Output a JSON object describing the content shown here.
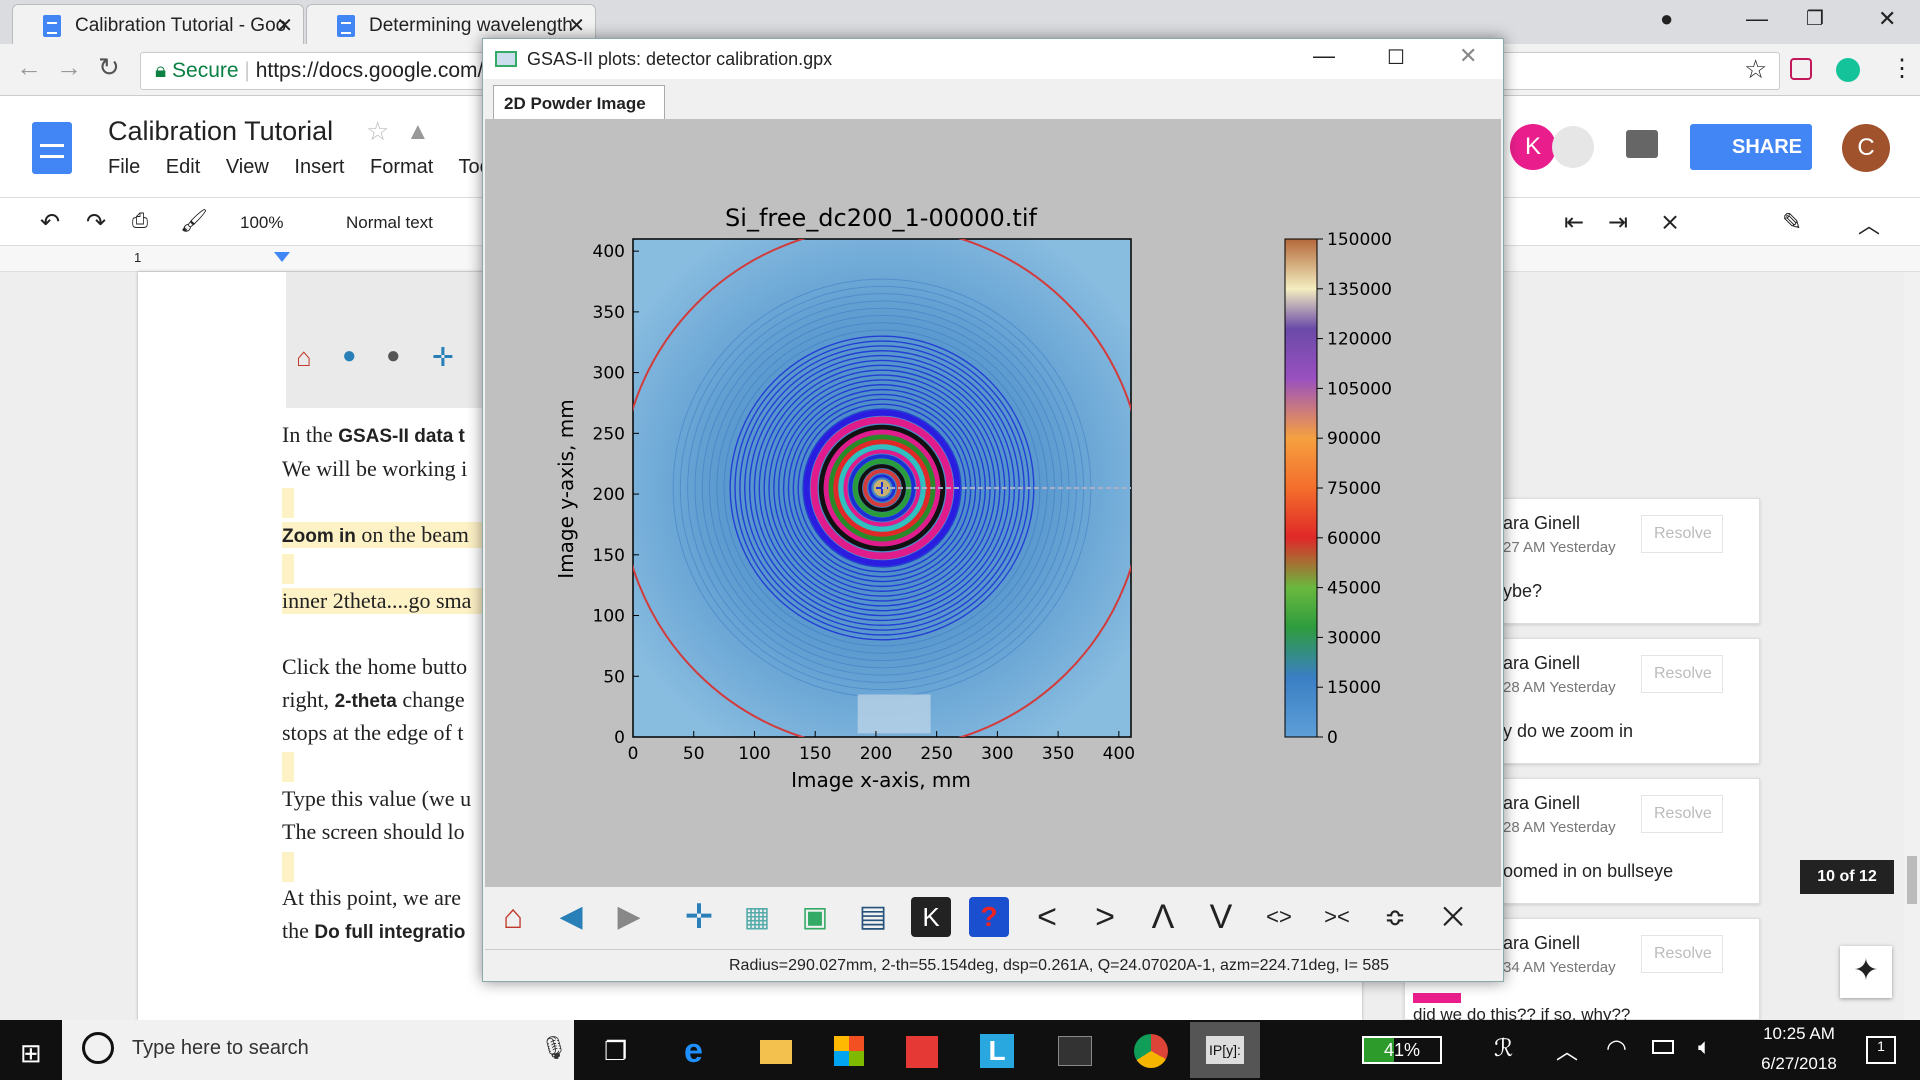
{
  "browser": {
    "tabs": [
      {
        "label": "Calibration Tutorial - Goo"
      },
      {
        "label": "Determining wavelength"
      }
    ],
    "secure_label": "Secure",
    "url": "https://docs.google.com/"
  },
  "docs": {
    "title": "Calibration Tutorial",
    "menus": [
      "File",
      "Edit",
      "View",
      "Insert",
      "Format",
      "Tool"
    ],
    "zoom": "100%",
    "style": "Normal text",
    "share_label": "SHARE",
    "avatar_k": "K",
    "avatar_c": "C",
    "ruler_mark": "1"
  },
  "doc_lines": [
    {
      "pre": "",
      "b": "GSAS-II data t",
      "prefix": "In the ",
      "post": ""
    },
    {
      "prefix": "We will be working i",
      "b": "",
      "post": ""
    },
    {
      "prefix": "",
      "b": "Zoom in",
      "post": " on the beam"
    },
    {
      "prefix": "inner 2theta....go sma",
      "b": "",
      "post": ""
    },
    {
      "prefix": "Click the home butto",
      "b": "",
      "post": ""
    },
    {
      "prefix": "right, ",
      "b": "2-theta",
      "post": " change"
    },
    {
      "prefix": "stops at the edge of t",
      "b": "",
      "post": ""
    },
    {
      "prefix": "Type this value (we u",
      "b": "",
      "post": ""
    },
    {
      "prefix": "The screen should lo",
      "b": "",
      "post": ""
    },
    {
      "prefix": "At this point, we are",
      "b": "",
      "post": ""
    },
    {
      "prefix": "the ",
      "b": "Do full integratio",
      "post": ""
    }
  ],
  "embedded_axis": {
    "tick0": "0",
    "tick50": "50",
    "label_r": "R"
  },
  "comments": [
    {
      "name": "ara Ginell",
      "time": "27 AM Yesterday",
      "text": "ybe?",
      "resolve": "Resolve"
    },
    {
      "name": "ara Ginell",
      "time": "28 AM Yesterday",
      "text": "y do we zoom in",
      "resolve": "Resolve"
    },
    {
      "name": "ara Ginell",
      "time": "28 AM Yesterday",
      "text": "oomed in on bullseye",
      "resolve": "Resolve"
    },
    {
      "name": "ara Ginell",
      "time": "34 AM Yesterday",
      "text": "did we do this?? if so, why??",
      "resolve": "Resolve"
    }
  ],
  "comment_counter": "10 of 12",
  "gsas": {
    "window_title": "GSAS-II plots: detector calibration.gpx",
    "tab": "2D Powder Image",
    "status": "Radius=290.027mm, 2-th=55.154deg, dsp=0.261A, Q=24.07020A-1, azm=224.71deg, I=   585"
  },
  "chart_data": {
    "type": "heatmap",
    "title": "Si_free_dc200_1-00000.tif",
    "xlabel": "Image x-axis, mm",
    "ylabel": "Image y-axis, mm",
    "xlim": [
      0,
      410
    ],
    "ylim": [
      0,
      410
    ],
    "xticks": [
      0,
      50,
      100,
      150,
      200,
      250,
      300,
      350,
      400
    ],
    "yticks": [
      0,
      50,
      100,
      150,
      200,
      250,
      300,
      350,
      400
    ],
    "beam_center": [
      205,
      205
    ],
    "colorbar": {
      "min": 0,
      "max": 150000,
      "ticks": [
        0,
        15000,
        30000,
        45000,
        60000,
        75000,
        90000,
        105000,
        120000,
        135000,
        150000
      ]
    }
  },
  "taskbar": {
    "search_placeholder": "Type here to search",
    "battery": "41%",
    "time": "10:25 AM",
    "date": "6/27/2018",
    "notif": "1"
  },
  "colors": {
    "share": "#4285f4",
    "accent_k": "#e91e8c",
    "ring_red": "#d23c3c"
  }
}
